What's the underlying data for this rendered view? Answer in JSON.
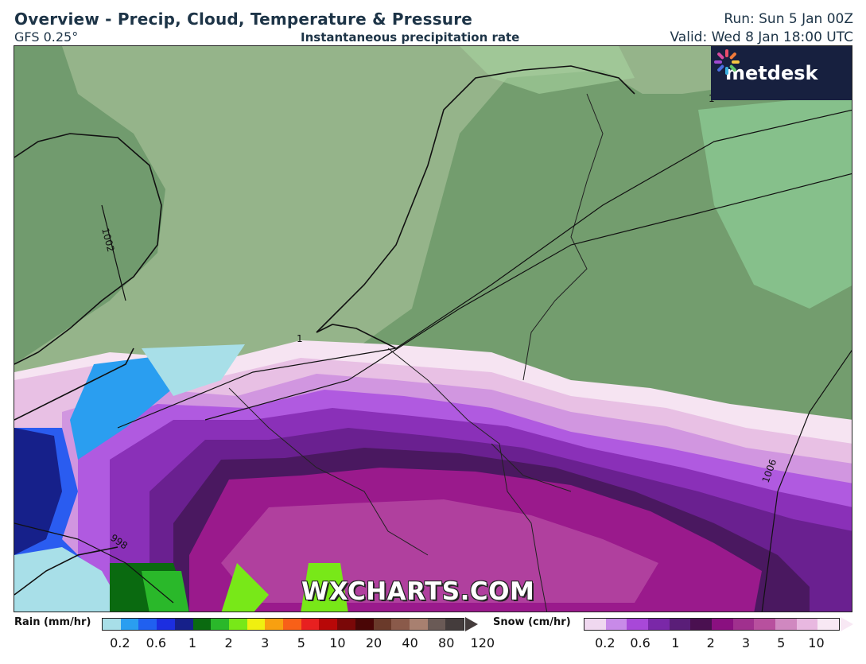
{
  "header": {
    "title": "Overview - Precip, Cloud, Temperature & Pressure",
    "model": "GFS 0.25°",
    "subtitle": "Instantaneous precipitation rate",
    "run": "Run: Sun 5 Jan 00Z",
    "valid": "Valid: Wed 8 Jan 18:00 UTC"
  },
  "logo": {
    "text": "metdesk",
    "icon": "metdesk-pinwheel-icon"
  },
  "watermark": "WXCHARTS.COM",
  "isobars": [
    {
      "label": "1002"
    },
    {
      "label": "998"
    },
    {
      "label": "1006"
    },
    {
      "label": "1"
    },
    {
      "label": "1"
    }
  ],
  "legend": {
    "rain": {
      "label": "Rain (mm/hr)",
      "colors": [
        "#a8dfe8",
        "#2a9ef0",
        "#2060f0",
        "#1c2ee0",
        "#16208a",
        "#0a6a10",
        "#2ab82a",
        "#78e818",
        "#f0f010",
        "#f8a010",
        "#f86018",
        "#e82020",
        "#b80808",
        "#7a0808",
        "#4a0606",
        "#6a3a2a",
        "#8a5a4a",
        "#a88070",
        "#6a5a56",
        "#443c3c"
      ],
      "ticks": [
        "0.2",
        "0.6",
        "1",
        "2",
        "3",
        "5",
        "10",
        "20",
        "40",
        "80",
        "120"
      ]
    },
    "snow": {
      "label": "Snow (cm/hr)",
      "colors": [
        "#f0d8f0",
        "#c88ae8",
        "#a848d8",
        "#7a28a8",
        "#5a1e78",
        "#4a1050",
        "#8a1080",
        "#a0308e",
        "#b8509e",
        "#d088c0",
        "#e8b8e0",
        "#f8e8f4"
      ],
      "ticks": [
        "0.2",
        "0.6",
        "1",
        "2",
        "3",
        "5",
        "10"
      ]
    }
  }
}
